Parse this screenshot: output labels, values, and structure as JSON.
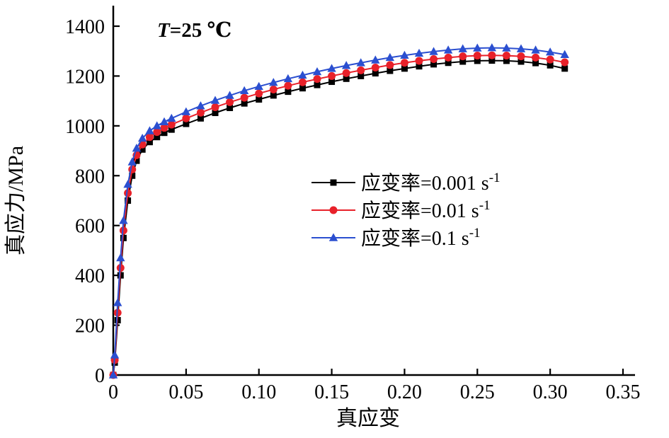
{
  "annotation": {
    "italic_part": "T",
    "rest_part": "=25 ℃"
  },
  "chart_data": {
    "type": "line",
    "title": "",
    "xlabel": "真应变",
    "ylabel": "真应力/MPa",
    "xlim": [
      0,
      0.3565
    ],
    "ylim": [
      0,
      1450
    ],
    "grid": false,
    "legend_position": "center-right",
    "xticks": {
      "values": [
        0,
        0.05,
        0.1,
        0.15,
        0.2,
        0.25,
        0.3,
        0.35
      ],
      "labels": [
        "0",
        "0.05",
        "0.10",
        "0.15",
        "0.20",
        "0.25",
        "0.30",
        "0.35"
      ]
    },
    "yticks": {
      "values": [
        0,
        200,
        400,
        600,
        800,
        1000,
        1200,
        1400
      ],
      "labels": [
        "0",
        "200",
        "400",
        "600",
        "800",
        "1000",
        "1200",
        "1400"
      ]
    },
    "x": [
      0,
      0.001,
      0.003,
      0.005,
      0.007,
      0.01,
      0.013,
      0.016,
      0.02,
      0.025,
      0.03,
      0.035,
      0.04,
      0.05,
      0.06,
      0.07,
      0.08,
      0.09,
      0.1,
      0.11,
      0.12,
      0.13,
      0.14,
      0.15,
      0.16,
      0.17,
      0.18,
      0.19,
      0.2,
      0.21,
      0.22,
      0.23,
      0.24,
      0.25,
      0.26,
      0.27,
      0.28,
      0.29,
      0.3,
      0.31
    ],
    "series": [
      {
        "name": "应变率=0.001 s⁻¹",
        "label_base": "应变率=0.001 s",
        "label_sup": "-1",
        "color": "#000000",
        "marker": "square",
        "y": [
          0,
          50,
          220,
          400,
          550,
          700,
          800,
          860,
          905,
          935,
          955,
          972,
          985,
          1008,
          1030,
          1052,
          1072,
          1090,
          1106,
          1122,
          1137,
          1151,
          1164,
          1177,
          1189,
          1200,
          1211,
          1221,
          1230,
          1239,
          1247,
          1253,
          1258,
          1261,
          1262,
          1261,
          1258,
          1252,
          1243,
          1230
        ]
      },
      {
        "name": "应变率=0.01 s⁻¹",
        "label_base": "应变率=0.01 s",
        "label_sup": "-1",
        "color": "#e8212a",
        "marker": "circle",
        "y": [
          0,
          60,
          250,
          430,
          580,
          730,
          825,
          882,
          925,
          955,
          975,
          992,
          1005,
          1030,
          1053,
          1075,
          1095,
          1113,
          1130,
          1146,
          1161,
          1175,
          1188,
          1200,
          1212,
          1223,
          1234,
          1244,
          1253,
          1261,
          1268,
          1274,
          1279,
          1282,
          1283,
          1282,
          1279,
          1274,
          1266,
          1255
        ]
      },
      {
        "name": "应变率=0.1 s⁻¹",
        "label_base": "应变率=0.1 s",
        "label_sup": "-1",
        "color": "#2b4fd0",
        "marker": "triangle",
        "y": [
          0,
          80,
          290,
          470,
          620,
          765,
          855,
          910,
          950,
          980,
          1000,
          1016,
          1030,
          1056,
          1080,
          1102,
          1122,
          1141,
          1158,
          1174,
          1189,
          1203,
          1217,
          1230,
          1242,
          1253,
          1264,
          1274,
          1283,
          1291,
          1298,
          1304,
          1309,
          1312,
          1313,
          1312,
          1309,
          1304,
          1296,
          1286
        ]
      }
    ]
  }
}
